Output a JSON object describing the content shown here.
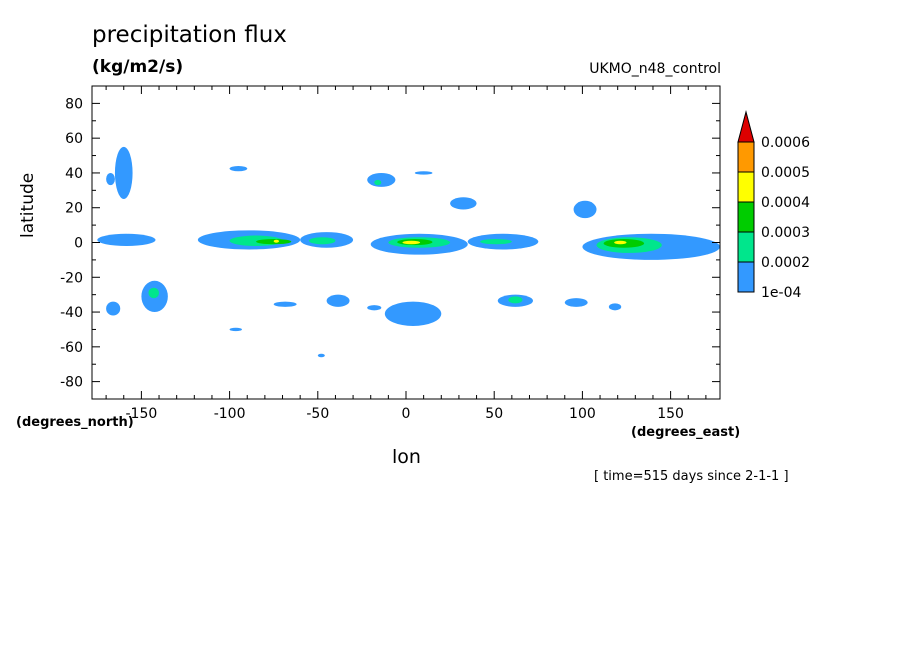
{
  "chart_data": {
    "type": "heatmap",
    "title": "precipitation flux",
    "units": "(kg/m2/s)",
    "source": "UKMO_n48_control",
    "xlabel": "lon",
    "ylabel": "latitude",
    "x_units": "(degrees_east)",
    "y_units": "(degrees_north)",
    "time_info": "[ time=515 days since 2-1-1 ]",
    "xlim": [
      -178,
      178
    ],
    "ylim": [
      -90,
      90
    ],
    "x_ticks": [
      -150,
      -100,
      -50,
      0,
      50,
      100,
      150
    ],
    "y_ticks": [
      80,
      60,
      40,
      20,
      0,
      -20,
      -40,
      -60,
      -80
    ],
    "x_tick_labels": [
      "-150",
      "-100",
      "-50",
      "0",
      "50",
      "100",
      "150"
    ],
    "y_tick_labels": [
      "80",
      "60",
      "40",
      "20",
      "0",
      "-20",
      "-40",
      "-60",
      "-80"
    ],
    "colorbar": {
      "levels": [
        "1e-04",
        "0.0002",
        "0.0003",
        "0.0004",
        "0.0005",
        "0.0006"
      ],
      "colors": [
        "#3399ff",
        "#00e68c",
        "#00cc00",
        "#ffff00",
        "#ff9900",
        "#dd0000"
      ]
    },
    "regions": [
      {
        "lon": [
          -175,
          -142
        ],
        "lat": [
          -2,
          5
        ],
        "level": 0
      },
      {
        "lon": [
          -118,
          -60
        ],
        "lat": [
          -4,
          7
        ],
        "level": 0
      },
      {
        "lon": [
          -100,
          -70
        ],
        "lat": [
          -2,
          4
        ],
        "level": 1
      },
      {
        "lon": [
          -85,
          -65
        ],
        "lat": [
          -1,
          2
        ],
        "level": 2
      },
      {
        "lon": [
          -75,
          -72
        ],
        "lat": [
          0,
          1.5
        ],
        "level": 3
      },
      {
        "lon": [
          -60,
          -30
        ],
        "lat": [
          -3,
          6
        ],
        "level": 0
      },
      {
        "lon": [
          -55,
          -40
        ],
        "lat": [
          -1,
          3
        ],
        "level": 1
      },
      {
        "lon": [
          -20,
          35
        ],
        "lat": [
          -7,
          5
        ],
        "level": 0
      },
      {
        "lon": [
          -10,
          25
        ],
        "lat": [
          -3,
          3
        ],
        "level": 1
      },
      {
        "lon": [
          -5,
          15
        ],
        "lat": [
          -1.5,
          2
        ],
        "level": 2
      },
      {
        "lon": [
          -2,
          8
        ],
        "lat": [
          -1,
          1
        ],
        "level": 3
      },
      {
        "lon": [
          35,
          75
        ],
        "lat": [
          -4,
          5
        ],
        "level": 0
      },
      {
        "lon": [
          42,
          60
        ],
        "lat": [
          -1,
          2
        ],
        "level": 1
      },
      {
        "lon": [
          100,
          178
        ],
        "lat": [
          -10,
          5
        ],
        "level": 0
      },
      {
        "lon": [
          108,
          145
        ],
        "lat": [
          -6,
          3
        ],
        "level": 1
      },
      {
        "lon": [
          112,
          135
        ],
        "lat": [
          -3,
          2
        ],
        "level": 2
      },
      {
        "lon": [
          118,
          125
        ],
        "lat": [
          -1,
          1
        ],
        "level": 3
      },
      {
        "lon": [
          -165,
          -155
        ],
        "lat": [
          25,
          55
        ],
        "level": 0
      },
      {
        "lon": [
          -170,
          -165
        ],
        "lat": [
          33,
          40
        ],
        "level": 0
      },
      {
        "lon": [
          -150,
          -135
        ],
        "lat": [
          -40,
          -22
        ],
        "level": 0
      },
      {
        "lon": [
          -146,
          -140
        ],
        "lat": [
          -32,
          -26
        ],
        "level": 1
      },
      {
        "lon": [
          -170,
          -162
        ],
        "lat": [
          -42,
          -34
        ],
        "level": 0
      },
      {
        "lon": [
          -22,
          -6
        ],
        "lat": [
          32,
          40
        ],
        "level": 0
      },
      {
        "lon": [
          -18,
          -14
        ],
        "lat": [
          33,
          36
        ],
        "level": 1
      },
      {
        "lon": [
          -45,
          -32
        ],
        "lat": [
          -37,
          -30
        ],
        "level": 0
      },
      {
        "lon": [
          -12,
          20
        ],
        "lat": [
          -48,
          -34
        ],
        "level": 0
      },
      {
        "lon": [
          52,
          72
        ],
        "lat": [
          -37,
          -30
        ],
        "level": 0
      },
      {
        "lon": [
          58,
          66
        ],
        "lat": [
          -35,
          -31
        ],
        "level": 1
      },
      {
        "lon": [
          95,
          108
        ],
        "lat": [
          14,
          24
        ],
        "level": 0
      },
      {
        "lon": [
          25,
          40
        ],
        "lat": [
          19,
          26
        ],
        "level": 0
      },
      {
        "lon": [
          -100,
          -90
        ],
        "lat": [
          41,
          44
        ],
        "level": 0
      },
      {
        "lon": [
          90,
          103
        ],
        "lat": [
          -37,
          -32
        ],
        "level": 0
      },
      {
        "lon": [
          -75,
          -62
        ],
        "lat": [
          -37,
          -34
        ],
        "level": 0
      },
      {
        "lon": [
          -22,
          -14
        ],
        "lat": [
          -39,
          -36
        ],
        "level": 0
      },
      {
        "lon": [
          115,
          122
        ],
        "lat": [
          -39,
          -35
        ],
        "level": 0
      },
      {
        "lon": [
          -50,
          -46
        ],
        "lat": [
          -66,
          -64
        ],
        "level": 0
      },
      {
        "lon": [
          -100,
          -93
        ],
        "lat": [
          -51,
          -49
        ],
        "level": 0
      },
      {
        "lon": [
          5,
          15
        ],
        "lat": [
          39,
          41
        ],
        "level": 0
      }
    ]
  }
}
